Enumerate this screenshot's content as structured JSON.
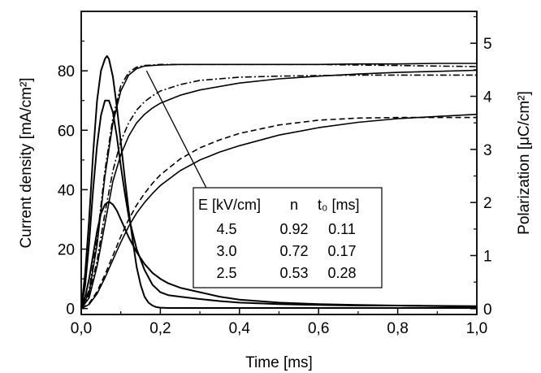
{
  "chart_data": {
    "type": "line",
    "xlabel": "Time [ms]",
    "ylabel_left": "Current density [mA/cm²]",
    "ylabel_right": "Polarization [μC/cm²]",
    "xlim": [
      0,
      1.0
    ],
    "ylim_left": [
      -2,
      100
    ],
    "ylim_right": [
      -0.11,
      5.6
    ],
    "x_ticks": [
      "0,0",
      "0,2",
      "0,4",
      "0,6",
      "0,8",
      "1,0"
    ],
    "x_tick_values": [
      0,
      0.2,
      0.4,
      0.6,
      0.8,
      1.0
    ],
    "y_ticks_left": [
      "0",
      "20",
      "40",
      "60",
      "80"
    ],
    "y_tick_values_left": [
      0,
      20,
      40,
      60,
      80
    ],
    "y_ticks_right": [
      "0",
      "1",
      "2",
      "3",
      "4",
      "5"
    ],
    "y_tick_values_right": [
      0,
      1,
      2,
      3,
      4,
      5
    ],
    "grid": false,
    "table": {
      "headers": [
        "E [kV/cm]",
        "n",
        "t₀ [ms]"
      ],
      "rows": [
        [
          "4.5",
          "0.92",
          "0.11"
        ],
        [
          "3.0",
          "0.72",
          "0.17"
        ],
        [
          "2.5",
          "0.53",
          "0.28"
        ]
      ]
    },
    "arrow": {
      "from": [
        0.165,
        80
      ],
      "to": [
        0.33,
        37
      ],
      "meaning": "direction of decreasing field E"
    },
    "series": [
      {
        "axis": "left",
        "style": "solid",
        "x": [
          0,
          0.01,
          0.02,
          0.03,
          0.04,
          0.05,
          0.06,
          0.065,
          0.07,
          0.08,
          0.09,
          0.1,
          0.11,
          0.12,
          0.13,
          0.14,
          0.15,
          0.16,
          0.17,
          0.18,
          0.19,
          0.2,
          0.22,
          0.25,
          0.3,
          0.4,
          0.5,
          0.6,
          0.7,
          0.8,
          0.9,
          1.0
        ],
        "values": [
          0,
          12,
          30,
          52,
          70,
          80,
          84,
          85,
          84,
          78,
          68,
          56,
          44,
          33,
          23,
          14,
          8,
          4,
          2,
          1,
          0.5,
          0.3,
          0.2,
          0.2,
          0.2,
          0.2,
          0.2,
          0.2,
          0.2,
          0.2,
          0.2,
          0.2
        ]
      },
      {
        "axis": "left",
        "style": "solid",
        "x": [
          0,
          0.01,
          0.02,
          0.03,
          0.04,
          0.05,
          0.06,
          0.07,
          0.08,
          0.09,
          0.1,
          0.11,
          0.12,
          0.14,
          0.16,
          0.18,
          0.2,
          0.22,
          0.25,
          0.3,
          0.35,
          0.4,
          0.5,
          0.6,
          0.7,
          0.8,
          0.9,
          1.0
        ],
        "values": [
          0,
          8,
          22,
          40,
          55,
          65,
          70,
          70,
          66,
          58,
          48,
          39,
          31,
          20,
          13,
          8,
          5.5,
          4.5,
          4,
          3.2,
          2.5,
          2,
          1.5,
          1.2,
          1,
          1,
          0.9,
          0.8
        ]
      },
      {
        "axis": "left",
        "style": "solid",
        "x": [
          0,
          0.01,
          0.02,
          0.03,
          0.04,
          0.05,
          0.06,
          0.07,
          0.08,
          0.09,
          0.1,
          0.11,
          0.12,
          0.14,
          0.16,
          0.18,
          0.2,
          0.22,
          0.25,
          0.3,
          0.35,
          0.4,
          0.5,
          0.6,
          0.7,
          0.8,
          0.9,
          1.0
        ],
        "values": [
          0,
          4,
          10,
          18,
          26,
          32,
          35,
          36,
          35,
          33,
          30,
          27,
          24,
          19,
          15,
          12,
          10,
          8.5,
          7,
          5.5,
          4,
          3,
          2,
          1.5,
          1.2,
          1,
          0.8,
          0.6
        ]
      },
      {
        "axis": "right",
        "style": "solid",
        "x": [
          0,
          0.02,
          0.04,
          0.06,
          0.08,
          0.1,
          0.12,
          0.14,
          0.16,
          0.18,
          0.2,
          0.25,
          0.3,
          0.4,
          0.5,
          0.6,
          0.7,
          0.8,
          0.9,
          1.0
        ],
        "values": [
          0,
          0.3,
          1.2,
          2.5,
          3.5,
          4.1,
          4.4,
          4.52,
          4.57,
          4.58,
          4.59,
          4.6,
          4.6,
          4.6,
          4.6,
          4.6,
          4.61,
          4.61,
          4.62,
          4.62
        ]
      },
      {
        "axis": "right",
        "style": "dash-dot",
        "x": [
          0,
          0.02,
          0.04,
          0.06,
          0.08,
          0.1,
          0.12,
          0.14,
          0.16,
          0.18,
          0.2,
          0.25,
          0.3,
          0.4,
          0.5,
          0.6,
          0.7,
          0.8,
          0.9,
          1.0
        ],
        "values": [
          0,
          0.35,
          1.3,
          2.6,
          3.6,
          4.2,
          4.45,
          4.55,
          4.58,
          4.59,
          4.6,
          4.6,
          4.6,
          4.6,
          4.6,
          4.6,
          4.59,
          4.58,
          4.57,
          4.56
        ]
      },
      {
        "axis": "right",
        "style": "solid",
        "x": [
          0,
          0.02,
          0.04,
          0.06,
          0.08,
          0.1,
          0.12,
          0.14,
          0.16,
          0.18,
          0.2,
          0.25,
          0.3,
          0.4,
          0.5,
          0.6,
          0.7,
          0.8,
          0.9,
          1.0
        ],
        "values": [
          0,
          0.2,
          0.8,
          1.6,
          2.4,
          2.9,
          3.25,
          3.5,
          3.66,
          3.78,
          3.87,
          4.02,
          4.12,
          4.25,
          4.33,
          4.38,
          4.42,
          4.45,
          4.47,
          4.49
        ]
      },
      {
        "axis": "right",
        "style": "dash-dot",
        "x": [
          0,
          0.02,
          0.04,
          0.06,
          0.08,
          0.1,
          0.12,
          0.14,
          0.16,
          0.18,
          0.2,
          0.25,
          0.3,
          0.4,
          0.5,
          0.6,
          0.7,
          0.8,
          0.9,
          1.0
        ],
        "values": [
          0,
          0.25,
          0.9,
          1.8,
          2.6,
          3.15,
          3.5,
          3.74,
          3.9,
          4.01,
          4.1,
          4.22,
          4.3,
          4.36,
          4.38,
          4.39,
          4.4,
          4.4,
          4.4,
          4.4
        ]
      },
      {
        "axis": "right",
        "style": "solid",
        "x": [
          0,
          0.02,
          0.04,
          0.06,
          0.08,
          0.1,
          0.12,
          0.14,
          0.16,
          0.18,
          0.2,
          0.25,
          0.3,
          0.35,
          0.4,
          0.5,
          0.6,
          0.7,
          0.8,
          0.9,
          1.0
        ],
        "values": [
          0,
          0.08,
          0.28,
          0.58,
          0.92,
          1.25,
          1.55,
          1.8,
          2.0,
          2.17,
          2.32,
          2.6,
          2.8,
          2.95,
          3.07,
          3.27,
          3.41,
          3.51,
          3.58,
          3.62,
          3.66
        ]
      },
      {
        "axis": "right",
        "style": "dashed",
        "x": [
          0,
          0.02,
          0.04,
          0.06,
          0.08,
          0.1,
          0.12,
          0.14,
          0.16,
          0.18,
          0.2,
          0.25,
          0.3,
          0.35,
          0.4,
          0.5,
          0.6,
          0.7,
          0.8,
          0.9,
          1.0
        ],
        "values": [
          0,
          0.1,
          0.32,
          0.64,
          1.0,
          1.36,
          1.68,
          1.95,
          2.17,
          2.36,
          2.52,
          2.82,
          3.03,
          3.18,
          3.3,
          3.46,
          3.55,
          3.59,
          3.6,
          3.6,
          3.6
        ]
      }
    ]
  }
}
